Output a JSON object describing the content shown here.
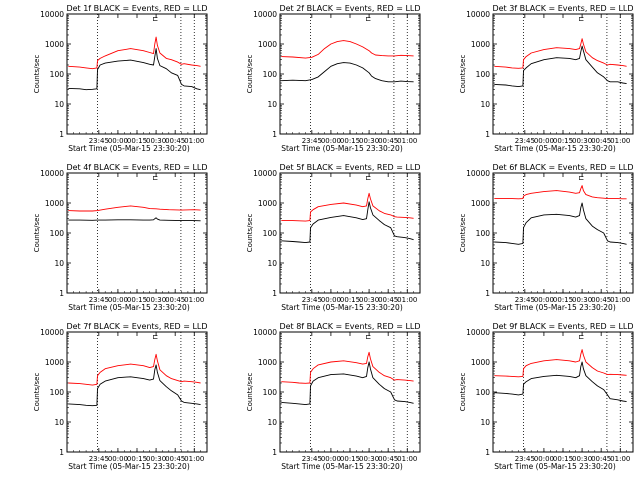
{
  "colors": {
    "background": "#ffffff",
    "axes": "#000000",
    "events_series": "#000000",
    "lld_series": "#ff0000"
  },
  "shared_axes": {
    "xlabel": "Start Time (05-Mar-15 23:30:20)",
    "ylabel": "Counts/sec",
    "ylog": true,
    "ylim": [
      1,
      10000
    ],
    "xlim_minutes_after_start": [
      -10,
      100
    ],
    "ytick_labels": [
      "1",
      "10",
      "100",
      "1000",
      "10000"
    ],
    "ytick_values": [
      1,
      10,
      100,
      1000,
      10000
    ],
    "xtick_labels": [
      "23:45",
      "00:00",
      "00:15",
      "00:30",
      "00:45",
      "01:00"
    ],
    "xtick_values": [
      15,
      30,
      45,
      60,
      75,
      90
    ],
    "dotted_vlines": [
      14,
      79.5,
      90
    ]
  },
  "chart_data": [
    {
      "type": "line",
      "title": "Det 1f BLACK = Events, RED = LLD",
      "lld_gap_marker": "⊏",
      "series": [
        {
          "name": "BLACK = Events",
          "color": "#000000",
          "x": [
            -9,
            0,
            5,
            10,
            13.5,
            14,
            16,
            20,
            30,
            40,
            50,
            55,
            58,
            59,
            60,
            61,
            63,
            68,
            72,
            77,
            80,
            82,
            88,
            92,
            95
          ],
          "y": [
            33,
            32,
            30,
            31,
            32,
            140,
            200,
            230,
            270,
            290,
            240,
            210,
            200,
            380,
            700,
            330,
            190,
            150,
            110,
            90,
            45,
            40,
            38,
            32,
            30
          ]
        },
        {
          "name": "RED = LLD",
          "color": "#ff0000",
          "x": [
            -9,
            0,
            5,
            10,
            13.5,
            14,
            16,
            20,
            30,
            40,
            50,
            55,
            58,
            59,
            60,
            61,
            63,
            68,
            72,
            77,
            80,
            82,
            88,
            92,
            95
          ],
          "y": [
            180,
            170,
            160,
            150,
            160,
            280,
            330,
            400,
            600,
            700,
            600,
            520,
            480,
            1000,
            1700,
            900,
            500,
            330,
            300,
            250,
            210,
            220,
            200,
            190,
            180
          ]
        }
      ]
    },
    {
      "type": "line",
      "title": "Det 2f BLACK = Events, RED = LLD",
      "lld_gap_marker": "⊏",
      "series": [
        {
          "name": "BLACK = Events",
          "color": "#000000",
          "x": [
            -9,
            0,
            10,
            15,
            20,
            25,
            30,
            35,
            40,
            45,
            50,
            55,
            60,
            62,
            65,
            70,
            75,
            80,
            85,
            90,
            95
          ],
          "y": [
            60,
            62,
            60,
            65,
            80,
            120,
            180,
            220,
            240,
            230,
            200,
            160,
            110,
            85,
            70,
            60,
            55,
            55,
            58,
            56,
            55
          ]
        },
        {
          "name": "RED = LLD",
          "color": "#ff0000",
          "x": [
            -9,
            0,
            10,
            15,
            20,
            25,
            30,
            35,
            40,
            45,
            50,
            55,
            60,
            62,
            65,
            70,
            75,
            80,
            85,
            90,
            95
          ],
          "y": [
            380,
            370,
            340,
            360,
            450,
            700,
            1000,
            1200,
            1300,
            1200,
            1000,
            800,
            600,
            500,
            430,
            410,
            400,
            400,
            420,
            410,
            400
          ]
        }
      ]
    },
    {
      "type": "line",
      "title": "Det 3f BLACK = Events, RED = LLD",
      "lld_gap_marker": "⊏",
      "series": [
        {
          "name": "BLACK = Events",
          "color": "#000000",
          "x": [
            -9,
            0,
            5,
            10,
            13.5,
            14,
            16,
            20,
            30,
            40,
            50,
            55,
            58,
            59,
            60,
            61,
            63,
            68,
            72,
            77,
            80,
            82,
            88,
            92,
            95
          ],
          "y": [
            45,
            43,
            40,
            38,
            40,
            130,
            160,
            220,
            300,
            350,
            330,
            300,
            330,
            550,
            850,
            600,
            300,
            170,
            110,
            80,
            60,
            55,
            55,
            50,
            48
          ]
        },
        {
          "name": "RED = LLD",
          "color": "#ff0000",
          "x": [
            -9,
            0,
            5,
            10,
            13.5,
            14,
            16,
            20,
            30,
            40,
            50,
            55,
            58,
            59,
            60,
            61,
            63,
            68,
            72,
            77,
            80,
            82,
            88,
            92,
            95
          ],
          "y": [
            180,
            170,
            160,
            155,
            160,
            300,
            380,
            500,
            650,
            750,
            700,
            650,
            700,
            1000,
            1500,
            1000,
            550,
            350,
            280,
            230,
            200,
            210,
            200,
            190,
            180
          ]
        }
      ]
    },
    {
      "type": "line",
      "title": "Det 4f BLACK = Events, RED = LLD",
      "lld_gap_marker": "⊏",
      "series": [
        {
          "name": "BLACK = Events",
          "color": "#000000",
          "x": [
            -9,
            0,
            10,
            14,
            20,
            30,
            40,
            50,
            55,
            58,
            59,
            60,
            61,
            63,
            70,
            80,
            90,
            95
          ],
          "y": [
            270,
            270,
            265,
            270,
            270,
            275,
            275,
            270,
            270,
            275,
            300,
            320,
            290,
            270,
            265,
            260,
            260,
            255
          ]
        },
        {
          "name": "RED = LLD",
          "color": "#ff0000",
          "x": [
            -9,
            0,
            10,
            14,
            20,
            30,
            40,
            50,
            55,
            60,
            63,
            70,
            80,
            90,
            95
          ],
          "y": [
            560,
            540,
            540,
            560,
            620,
            720,
            800,
            720,
            650,
            640,
            620,
            600,
            580,
            600,
            580
          ]
        }
      ]
    },
    {
      "type": "line",
      "title": "Det 5f BLACK = Events, RED = LLD",
      "lld_gap_marker": "⊏",
      "series": [
        {
          "name": "BLACK = Events",
          "color": "#000000",
          "x": [
            -9,
            0,
            5,
            10,
            13.5,
            14,
            16,
            20,
            30,
            40,
            50,
            55,
            58,
            59,
            60,
            61,
            63,
            68,
            72,
            77,
            80,
            82,
            88,
            92,
            95
          ],
          "y": [
            55,
            52,
            50,
            48,
            50,
            150,
            200,
            270,
            330,
            380,
            320,
            280,
            300,
            600,
            1100,
            700,
            400,
            260,
            190,
            150,
            80,
            75,
            70,
            65,
            60
          ]
        },
        {
          "name": "RED = LLD",
          "color": "#ff0000",
          "x": [
            -9,
            0,
            5,
            10,
            13.5,
            14,
            16,
            20,
            30,
            40,
            50,
            55,
            58,
            59,
            60,
            61,
            63,
            68,
            72,
            77,
            80,
            82,
            88,
            92,
            95
          ],
          "y": [
            260,
            260,
            255,
            250,
            260,
            500,
            600,
            750,
            900,
            1000,
            850,
            750,
            800,
            1400,
            2100,
            1400,
            800,
            550,
            450,
            400,
            350,
            340,
            330,
            320,
            310
          ]
        }
      ]
    },
    {
      "type": "line",
      "title": "Det 6f BLACK = Events, RED = LLD",
      "lld_gap_marker": "⊏",
      "series": [
        {
          "name": "BLACK = Events",
          "color": "#000000",
          "x": [
            -9,
            0,
            5,
            10,
            13.5,
            14,
            16,
            20,
            30,
            40,
            50,
            55,
            58,
            59,
            60,
            61,
            63,
            68,
            72,
            77,
            80,
            82,
            88,
            92,
            95
          ],
          "y": [
            50,
            48,
            45,
            42,
            45,
            150,
            220,
            320,
            400,
            420,
            380,
            340,
            380,
            700,
            1000,
            600,
            300,
            170,
            130,
            100,
            55,
            50,
            48,
            45,
            42
          ]
        },
        {
          "name": "RED = LLD",
          "color": "#ff0000",
          "x": [
            -9,
            0,
            5,
            10,
            13.5,
            14,
            16,
            20,
            30,
            40,
            50,
            55,
            58,
            59,
            60,
            61,
            63,
            68,
            72,
            77,
            80,
            82,
            88,
            92,
            95
          ],
          "y": [
            1400,
            1400,
            1400,
            1380,
            1400,
            1700,
            1900,
            2100,
            2400,
            2600,
            2300,
            2100,
            2200,
            3000,
            3800,
            2600,
            1900,
            1600,
            1500,
            1450,
            1400,
            1400,
            1400,
            1380,
            1380
          ]
        }
      ]
    },
    {
      "type": "line",
      "title": "Det 7f BLACK = Events, RED = LLD",
      "lld_gap_marker": "⊏",
      "series": [
        {
          "name": "BLACK = Events",
          "color": "#000000",
          "x": [
            -9,
            0,
            5,
            10,
            13.5,
            14,
            16,
            20,
            30,
            40,
            50,
            55,
            58,
            59,
            60,
            61,
            63,
            68,
            72,
            77,
            80,
            82,
            88,
            92,
            95
          ],
          "y": [
            40,
            38,
            36,
            35,
            36,
            130,
            180,
            230,
            300,
            320,
            280,
            250,
            270,
            550,
            800,
            450,
            240,
            150,
            110,
            80,
            50,
            45,
            42,
            40,
            38
          ]
        },
        {
          "name": "RED = LLD",
          "color": "#ff0000",
          "x": [
            -9,
            0,
            5,
            10,
            13.5,
            14,
            16,
            20,
            30,
            40,
            50,
            55,
            58,
            59,
            60,
            61,
            63,
            68,
            72,
            77,
            80,
            82,
            88,
            92,
            95
          ],
          "y": [
            200,
            190,
            180,
            170,
            180,
            350,
            450,
            600,
            750,
            850,
            750,
            650,
            700,
            1200,
            1800,
            1100,
            550,
            350,
            280,
            240,
            220,
            230,
            220,
            210,
            200
          ]
        }
      ]
    },
    {
      "type": "line",
      "title": "Det 8f BLACK = Events, RED = LLD",
      "lld_gap_marker": "⊏",
      "series": [
        {
          "name": "BLACK = Events",
          "color": "#000000",
          "x": [
            -9,
            0,
            5,
            10,
            13.5,
            14,
            16,
            20,
            30,
            40,
            50,
            55,
            58,
            59,
            60,
            61,
            63,
            68,
            72,
            77,
            80,
            82,
            88,
            92,
            95
          ],
          "y": [
            45,
            42,
            40,
            38,
            40,
            160,
            230,
            300,
            380,
            400,
            340,
            300,
            330,
            650,
            1000,
            600,
            300,
            180,
            130,
            100,
            55,
            50,
            48,
            45,
            42
          ]
        },
        {
          "name": "RED = LLD",
          "color": "#ff0000",
          "x": [
            -9,
            0,
            5,
            10,
            13.5,
            14,
            16,
            20,
            30,
            40,
            50,
            55,
            58,
            59,
            60,
            61,
            63,
            68,
            72,
            77,
            80,
            82,
            88,
            92,
            95
          ],
          "y": [
            220,
            210,
            200,
            195,
            200,
            450,
            600,
            800,
            1000,
            1100,
            950,
            850,
            900,
            1500,
            2100,
            1300,
            700,
            450,
            350,
            300,
            250,
            260,
            250,
            240,
            230
          ]
        }
      ]
    },
    {
      "type": "line",
      "title": "Det 9f BLACK = Events, RED = LLD",
      "lld_gap_marker": "⊏",
      "series": [
        {
          "name": "BLACK = Events",
          "color": "#000000",
          "x": [
            -9,
            0,
            5,
            10,
            13.5,
            14,
            16,
            20,
            30,
            40,
            50,
            55,
            58,
            59,
            60,
            61,
            63,
            68,
            72,
            77,
            80,
            82,
            88,
            92,
            95
          ],
          "y": [
            95,
            90,
            85,
            80,
            85,
            180,
            220,
            280,
            330,
            360,
            330,
            300,
            350,
            700,
            1000,
            600,
            350,
            220,
            160,
            120,
            80,
            60,
            55,
            50,
            48
          ]
        },
        {
          "name": "RED = LLD",
          "color": "#ff0000",
          "x": [
            -9,
            0,
            5,
            10,
            13.5,
            14,
            16,
            20,
            30,
            40,
            50,
            55,
            58,
            59,
            60,
            61,
            63,
            68,
            72,
            77,
            80,
            82,
            88,
            92,
            95
          ],
          "y": [
            350,
            340,
            330,
            320,
            330,
            600,
            750,
            900,
            1100,
            1200,
            1100,
            1000,
            1100,
            1800,
            2600,
            1700,
            1000,
            650,
            500,
            430,
            380,
            390,
            380,
            370,
            360
          ]
        }
      ]
    }
  ]
}
